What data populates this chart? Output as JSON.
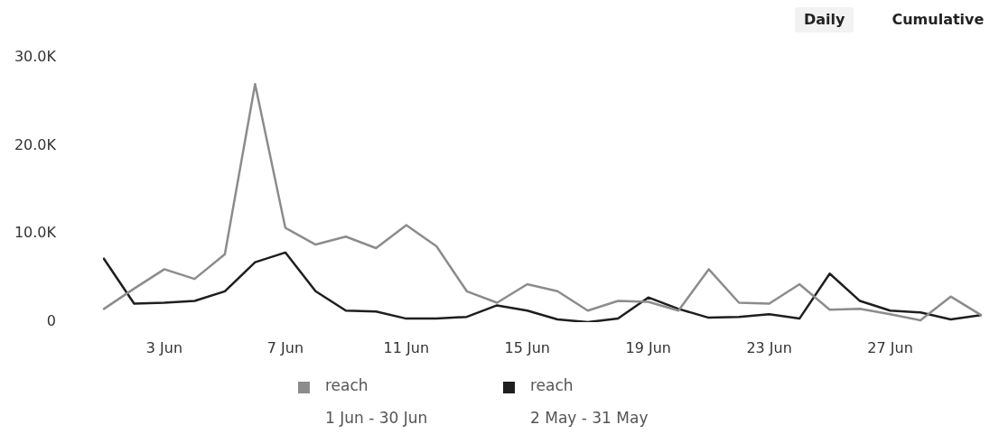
{
  "chart_data": {
    "type": "line",
    "categories": [
      null,
      null,
      "3 Jun",
      null,
      null,
      null,
      "7 Jun",
      null,
      null,
      null,
      "11 Jun",
      null,
      null,
      null,
      "15 Jun",
      null,
      null,
      null,
      "19 Jun",
      null,
      null,
      null,
      "23 Jun",
      null,
      null,
      null,
      "27 Jun",
      null,
      null,
      null
    ],
    "series": [
      {
        "name": "reach\n1 Jun - 30 Jun",
        "color": "#8c8c8c",
        "values": [
          1500,
          3800,
          6000,
          4900,
          7700,
          27000,
          10700,
          8800,
          9700,
          8400,
          11000,
          8600,
          3500,
          2200,
          4300,
          3500,
          1300,
          2400,
          2300,
          1300,
          6000,
          2200,
          2100,
          4300,
          1400,
          1500,
          900,
          200,
          2900,
          800
        ]
      },
      {
        "name": "reach\n2 May - 31 May",
        "color": "#1e1e1e",
        "values": [
          7200,
          2100,
          2200,
          2400,
          3500,
          6800,
          7900,
          3500,
          1300,
          1200,
          400,
          400,
          600,
          1900,
          1300,
          300,
          0,
          400,
          2800,
          1500,
          500,
          600,
          900,
          400,
          5500,
          2400,
          1300,
          1100,
          300,
          800
        ]
      }
    ],
    "ylim": [
      0,
      30000
    ],
    "yticks": [
      0,
      {
        "value": 10000,
        "label": "10.0K"
      },
      {
        "value": 20000,
        "label": "20.0K"
      },
      {
        "value": 30000,
        "label": "30.0K"
      }
    ],
    "legend": "bottom",
    "annotations": [
      "Daily",
      "Cumulative"
    ]
  }
}
